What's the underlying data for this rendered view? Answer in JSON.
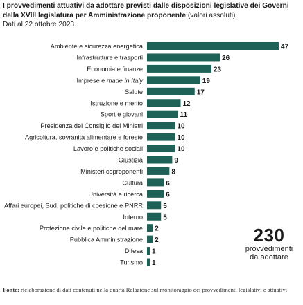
{
  "header": {
    "title_bold": "I provvedimenti attuativi da adottare previsti dalle disposizioni legislative dei Governi della XVIII legislatura per Amministrazione proponente",
    "title_rest": "(valori assoluti).",
    "date_line": "Dati al 22 ottobre 2023."
  },
  "chart_data": {
    "type": "bar",
    "orientation": "horizontal",
    "categories": [
      "Ambiente e sicurezza energetica",
      "Infrastrutture e trasporti",
      "Economia e finanze",
      "Imprese e made in Italy",
      "Salute",
      "Istruzione e merito",
      "Sport e giovani",
      "Presidenza del Consiglio dei Ministri",
      "Agricoltura, sovranità alimentare e foreste",
      "Lavoro e politiche sociali",
      "Giustizia",
      "Ministeri coproponenti",
      "Cultura",
      "Università e ricerca",
      "Affari europei, Sud, politiche di coesione e PNRR",
      "Interno",
      "Protezione civile e politiche del mare",
      "Pubblica Amministrazione",
      "Difesa",
      "Turismo"
    ],
    "values": [
      47,
      26,
      23,
      19,
      17,
      12,
      11,
      10,
      10,
      10,
      9,
      8,
      6,
      6,
      5,
      5,
      2,
      2,
      1,
      1
    ],
    "xlim": [
      0,
      47
    ],
    "bar_color": "#1d6157",
    "grid": false,
    "data_labels": true
  },
  "total": {
    "value": "230",
    "label_line1": "provvedimenti",
    "label_line2": "da adottare"
  },
  "source": {
    "label": "Fonte:",
    "text": "rielaborazione di dati contenuti nella quarta Relazione sul monitoraggio dei provvedimenti legislativi e attuativi"
  }
}
